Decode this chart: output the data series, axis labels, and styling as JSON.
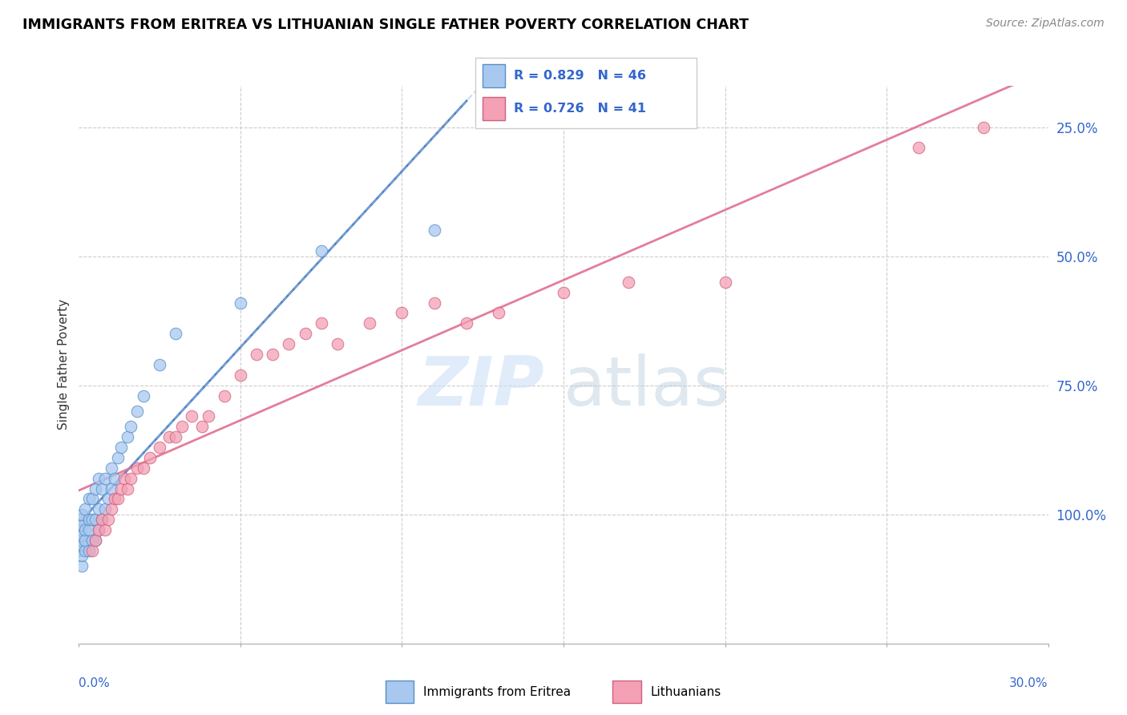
{
  "title": "IMMIGRANTS FROM ERITREA VS LITHUANIAN SINGLE FATHER POVERTY CORRELATION CHART",
  "source": "Source: ZipAtlas.com",
  "ylabel": "Single Father Poverty",
  "yaxis_labels": [
    "100.0%",
    "75.0%",
    "50.0%",
    "25.0%"
  ],
  "r1": 0.829,
  "n1": 46,
  "r2": 0.726,
  "n2": 41,
  "blue_color": "#a8c8f0",
  "blue_edge": "#5590c8",
  "pink_color": "#f4a0b5",
  "pink_edge": "#d06080",
  "blue_line_color": "#4477bb",
  "pink_line_color": "#e07090",
  "legend_text_color": "#3366cc",
  "blue_scatter_x": [
    0.0,
    0.0,
    0.0,
    0.0,
    0.001,
    0.001,
    0.001,
    0.001,
    0.001,
    0.001,
    0.002,
    0.002,
    0.002,
    0.002,
    0.003,
    0.003,
    0.003,
    0.003,
    0.004,
    0.004,
    0.004,
    0.005,
    0.005,
    0.005,
    0.006,
    0.006,
    0.006,
    0.007,
    0.007,
    0.008,
    0.008,
    0.009,
    0.01,
    0.01,
    0.011,
    0.012,
    0.013,
    0.015,
    0.016,
    0.018,
    0.02,
    0.025,
    0.03,
    0.05,
    0.075,
    0.11
  ],
  "blue_scatter_y": [
    0.18,
    0.2,
    0.22,
    0.24,
    0.15,
    0.17,
    0.19,
    0.21,
    0.23,
    0.25,
    0.18,
    0.2,
    0.22,
    0.26,
    0.18,
    0.22,
    0.24,
    0.28,
    0.2,
    0.24,
    0.28,
    0.2,
    0.24,
    0.3,
    0.22,
    0.26,
    0.32,
    0.24,
    0.3,
    0.26,
    0.32,
    0.28,
    0.3,
    0.34,
    0.32,
    0.36,
    0.38,
    0.4,
    0.42,
    0.45,
    0.48,
    0.54,
    0.6,
    0.66,
    0.76,
    0.8
  ],
  "pink_scatter_x": [
    0.004,
    0.005,
    0.006,
    0.007,
    0.008,
    0.009,
    0.01,
    0.011,
    0.012,
    0.013,
    0.014,
    0.015,
    0.016,
    0.018,
    0.02,
    0.022,
    0.025,
    0.028,
    0.03,
    0.032,
    0.035,
    0.038,
    0.04,
    0.045,
    0.05,
    0.055,
    0.06,
    0.065,
    0.07,
    0.075,
    0.08,
    0.09,
    0.1,
    0.11,
    0.12,
    0.13,
    0.15,
    0.17,
    0.2,
    0.26,
    0.28
  ],
  "pink_scatter_y": [
    0.18,
    0.2,
    0.22,
    0.24,
    0.22,
    0.24,
    0.26,
    0.28,
    0.28,
    0.3,
    0.32,
    0.3,
    0.32,
    0.34,
    0.34,
    0.36,
    0.38,
    0.4,
    0.4,
    0.42,
    0.44,
    0.42,
    0.44,
    0.48,
    0.52,
    0.56,
    0.56,
    0.58,
    0.6,
    0.62,
    0.58,
    0.62,
    0.64,
    0.66,
    0.62,
    0.64,
    0.68,
    0.7,
    0.7,
    0.96,
    1.0
  ],
  "xlim": [
    0.0,
    0.3
  ],
  "ylim": [
    0.0,
    1.08
  ],
  "yticks": [
    0.25,
    0.5,
    0.75,
    1.0
  ],
  "xticks": [
    0.0,
    0.05,
    0.1,
    0.15,
    0.2,
    0.25,
    0.3
  ]
}
